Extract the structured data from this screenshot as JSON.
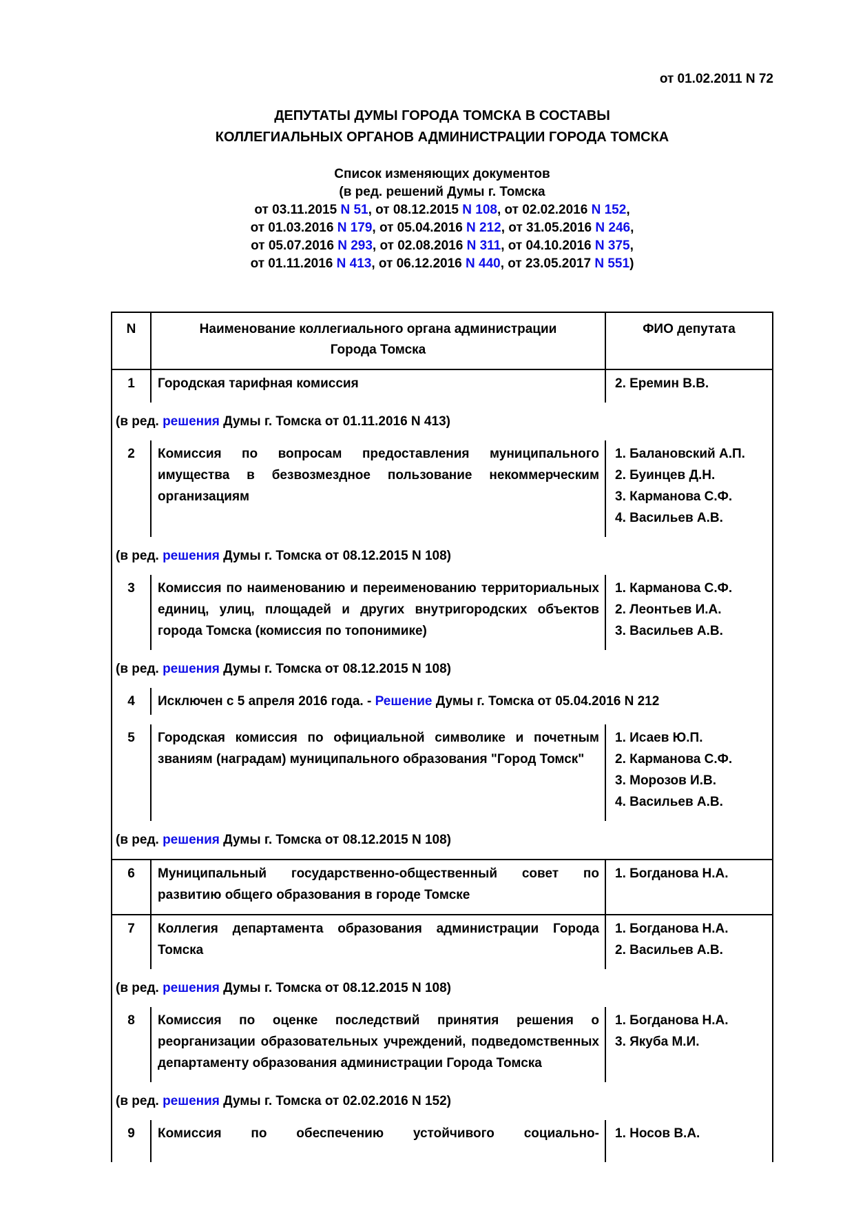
{
  "colors": {
    "link_blue": "#0f0fe8",
    "text_black": "#000000"
  },
  "header": {
    "doc_ref": "от 01.02.2011 N 72",
    "title_line1": "ДЕПУТАТЫ ДУМЫ ГОРОДА ТОМСКА В СОСТАВЫ",
    "title_line2": "КОЛЛЕГИАЛЬНЫХ ОРГАНОВ АДМИНИСТРАЦИИ ГОРОДА ТОМСКА",
    "subtitle": "Список изменяющих документов",
    "intro": "(в ред. решений Думы г. Томска",
    "amendment_lines": [
      [
        {
          "t": "от 03.11.2015 ",
          "link": false
        },
        {
          "t": "N 51",
          "link": true
        },
        {
          "t": ", от 08.12.2015 ",
          "link": false
        },
        {
          "t": "N 108",
          "link": true
        },
        {
          "t": ", от 02.02.2016 ",
          "link": false
        },
        {
          "t": "N 152",
          "link": true
        },
        {
          "t": ",",
          "link": false
        }
      ],
      [
        {
          "t": "от 01.03.2016 ",
          "link": false
        },
        {
          "t": "N 179",
          "link": true
        },
        {
          "t": ", от 05.04.2016 ",
          "link": false
        },
        {
          "t": "N 212",
          "link": true
        },
        {
          "t": ", от 31.05.2016 ",
          "link": false
        },
        {
          "t": "N 246",
          "link": true
        },
        {
          "t": ",",
          "link": false
        }
      ],
      [
        {
          "t": "от 05.07.2016 ",
          "link": false
        },
        {
          "t": "N 293",
          "link": true
        },
        {
          "t": ", от 02.08.2016 ",
          "link": false
        },
        {
          "t": "N 311",
          "link": true
        },
        {
          "t": ", от 04.10.2016 ",
          "link": false
        },
        {
          "t": "N 375",
          "link": true
        },
        {
          "t": ",",
          "link": false
        }
      ],
      [
        {
          "t": "от 01.11.2016 ",
          "link": false
        },
        {
          "t": "N 413",
          "link": true
        },
        {
          "t": ", от 06.12.2016 ",
          "link": false
        },
        {
          "t": "N 440",
          "link": true
        },
        {
          "t": ", от 23.05.2017 ",
          "link": false
        },
        {
          "t": "N 551",
          "link": true
        },
        {
          "t": ")",
          "link": false
        }
      ]
    ]
  },
  "table": {
    "headers": {
      "num": "N",
      "name": "Наименование коллегиального органа администрации Города Томска",
      "fio": "ФИО депутата"
    },
    "blocks": [
      {
        "type": "row",
        "num": "1",
        "name": "Городская тарифная комиссия",
        "fio": [
          "2. Еремин В.В."
        ]
      },
      {
        "type": "note",
        "segments": [
          {
            "t": "(в ред. ",
            "link": false
          },
          {
            "t": "решения",
            "link": true
          },
          {
            "t": " Думы г. Томска от 01.11.2016 N 413)",
            "link": false
          }
        ]
      },
      {
        "type": "row",
        "num": "2",
        "name": "Комиссия по вопросам предоставления муниципального имущества в безвозмездное пользование некоммерческим организациям",
        "fio": [
          "1. Балановский А.П.",
          "2. Буинцев Д.Н.",
          "3. Карманова С.Ф.",
          "4. Васильев А.В."
        ]
      },
      {
        "type": "note",
        "segments": [
          {
            "t": "(в ред. ",
            "link": false
          },
          {
            "t": "решения",
            "link": true
          },
          {
            "t": " Думы г. Томска от 08.12.2015 N 108)",
            "link": false
          }
        ]
      },
      {
        "type": "row",
        "num": "3",
        "name": "Комиссия по наименованию и переименованию территориальных единиц, улиц, площадей и других внутригородских объектов города Томска (комиссия по топонимике)",
        "fio": [
          "1. Карманова С.Ф.",
          "2. Леонтьев И.А.",
          "3. Васильев А.В."
        ]
      },
      {
        "type": "note",
        "segments": [
          {
            "t": "(в ред. ",
            "link": false
          },
          {
            "t": "решения",
            "link": true
          },
          {
            "t": " Думы г. Томска от 08.12.2015 N 108)",
            "link": false
          }
        ]
      },
      {
        "type": "row_span",
        "num": "4",
        "segments": [
          {
            "t": "Исключен с 5 апреля 2016 года. - ",
            "link": false
          },
          {
            "t": "Решение",
            "link": true
          },
          {
            "t": " Думы г. Томска от 05.04.2016 N 212",
            "link": false
          }
        ]
      },
      {
        "type": "spacer"
      },
      {
        "type": "row",
        "num": "5",
        "name": "Городская комиссия по официальной символике и почетным званиям (наградам) муниципального образования \"Город Томск\"",
        "fio": [
          "1. Исаев Ю.П.",
          "2. Карманова С.Ф.",
          "3. Морозов И.В.",
          "4. Васильев А.В."
        ]
      },
      {
        "type": "note",
        "segments": [
          {
            "t": "(в ред. ",
            "link": false
          },
          {
            "t": "решения",
            "link": true
          },
          {
            "t": " Думы г. Томска от 08.12.2015 N 108)",
            "link": false
          }
        ]
      },
      {
        "type": "row",
        "num": "6",
        "rule_above": true,
        "name": "Муниципальный государственно-общественный совет по развитию общего образования в городе Томске",
        "fio": [
          "1. Богданова Н.А."
        ]
      },
      {
        "type": "row",
        "num": "7",
        "rule_above": true,
        "name": "Коллегия департамента образования администрации Города Томска",
        "fio": [
          "1. Богданова Н.А.",
          "2. Васильев А.В."
        ]
      },
      {
        "type": "note",
        "segments": [
          {
            "t": "(в ред. ",
            "link": false
          },
          {
            "t": "решения",
            "link": true
          },
          {
            "t": " Думы г. Томска от 08.12.2015 N 108)",
            "link": false
          }
        ]
      },
      {
        "type": "row",
        "num": "8",
        "name": "Комиссия по оценке последствий принятия решения о реорганизации образовательных учреждений, подведомственных департаменту образования администрации Города Томска",
        "fio": [
          "1. Богданова Н.А.",
          "3. Якуба М.И."
        ]
      },
      {
        "type": "note",
        "segments": [
          {
            "t": "(в ред. ",
            "link": false
          },
          {
            "t": "решения",
            "link": true
          },
          {
            "t": " Думы г. Томска от 02.02.2016 N 152)",
            "link": false
          }
        ]
      },
      {
        "type": "row",
        "num": "9",
        "truncated": true,
        "force_justify": true,
        "name": "Комиссия по обеспечению устойчивого социально-",
        "fio": [
          "1. Носов В.А."
        ]
      }
    ]
  }
}
